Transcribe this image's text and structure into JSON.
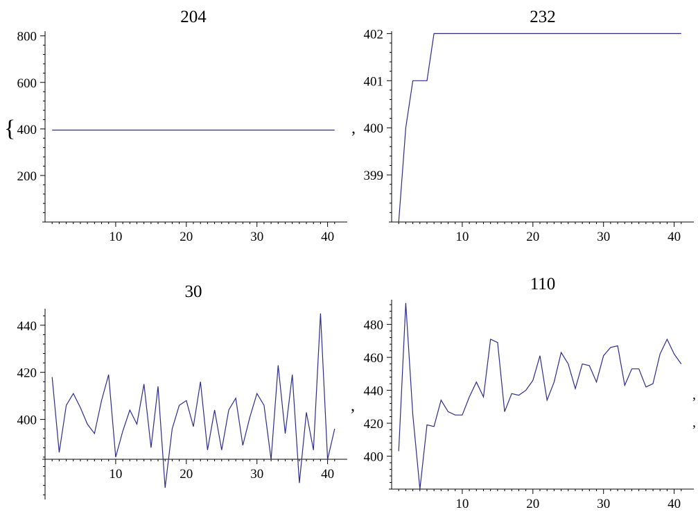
{
  "chart_data": [
    {
      "type": "line",
      "title": "204",
      "x": [
        1,
        41
      ],
      "y": [
        395,
        395
      ],
      "xlim": [
        0,
        42
      ],
      "ylim": [
        0,
        820
      ],
      "xticks": [
        10,
        20,
        30,
        40
      ],
      "yticks": [
        200,
        400,
        600,
        800
      ],
      "color": "#2b2b8c"
    },
    {
      "type": "line",
      "title": "232",
      "x": [
        1,
        2,
        3,
        4,
        5,
        6,
        7,
        8,
        9,
        10,
        11,
        12,
        13,
        14,
        15,
        16,
        17,
        18,
        19,
        20,
        21,
        22,
        23,
        24,
        25,
        26,
        27,
        28,
        29,
        30,
        31,
        32,
        33,
        34,
        35,
        36,
        37,
        38,
        39,
        40,
        41
      ],
      "y": [
        398,
        400,
        401,
        401,
        401,
        402,
        402,
        402,
        402,
        402,
        402,
        402,
        402,
        402,
        402,
        402,
        402,
        402,
        402,
        402,
        402,
        402,
        402,
        402,
        402,
        402,
        402,
        402,
        402,
        402,
        402,
        402,
        402,
        402,
        402,
        402,
        402,
        402,
        402,
        402,
        402
      ],
      "xlim": [
        0,
        42
      ],
      "ylim": [
        398,
        402.05
      ],
      "xticks": [
        10,
        20,
        30,
        40
      ],
      "yticks": [
        399,
        400,
        401,
        402
      ],
      "color": "#2b2b8c"
    },
    {
      "type": "line",
      "title": "30",
      "x": [
        1,
        2,
        3,
        4,
        5,
        6,
        7,
        8,
        9,
        10,
        11,
        12,
        13,
        14,
        15,
        16,
        17,
        18,
        19,
        20,
        21,
        22,
        23,
        24,
        25,
        26,
        27,
        28,
        29,
        30,
        31,
        32,
        33,
        34,
        35,
        36,
        37,
        38,
        39,
        40,
        41
      ],
      "y": [
        418,
        386,
        406,
        411,
        405,
        398,
        394,
        408,
        419,
        384,
        395,
        404,
        398,
        415,
        388,
        414,
        371,
        396,
        406,
        408,
        397,
        416,
        387,
        404,
        387,
        404,
        409,
        389,
        401,
        411,
        406,
        383,
        423,
        394,
        419,
        373,
        403,
        387,
        445,
        383,
        396
      ],
      "xlim": [
        0,
        42
      ],
      "ylim": [
        366,
        447
      ],
      "xticks": [
        10,
        20,
        30,
        40
      ],
      "yticks": [
        400,
        420,
        440
      ],
      "color": "#2b2b8c"
    },
    {
      "type": "line",
      "title": "110",
      "x": [
        1,
        2,
        3,
        4,
        5,
        6,
        7,
        8,
        9,
        10,
        11,
        12,
        13,
        14,
        15,
        16,
        17,
        18,
        19,
        20,
        21,
        22,
        23,
        24,
        25,
        26,
        27,
        28,
        29,
        30,
        31,
        32,
        33,
        34,
        35,
        36,
        37,
        38,
        39,
        40,
        41
      ],
      "y": [
        403,
        493,
        425,
        380,
        419,
        418,
        434,
        427,
        425,
        425,
        436,
        445,
        436,
        471,
        469,
        427,
        438,
        437,
        440,
        446,
        461,
        434,
        445,
        463,
        456,
        441,
        456,
        455,
        445,
        461,
        466,
        467,
        443,
        453,
        453,
        442,
        444,
        462,
        471,
        462,
        456
      ],
      "xlim": [
        0,
        42
      ],
      "ylim": [
        380,
        495
      ],
      "xticks": [
        10,
        20,
        30,
        40
      ],
      "yticks": [
        400,
        420,
        440,
        460,
        480
      ],
      "color": "#2b2b8c"
    }
  ]
}
